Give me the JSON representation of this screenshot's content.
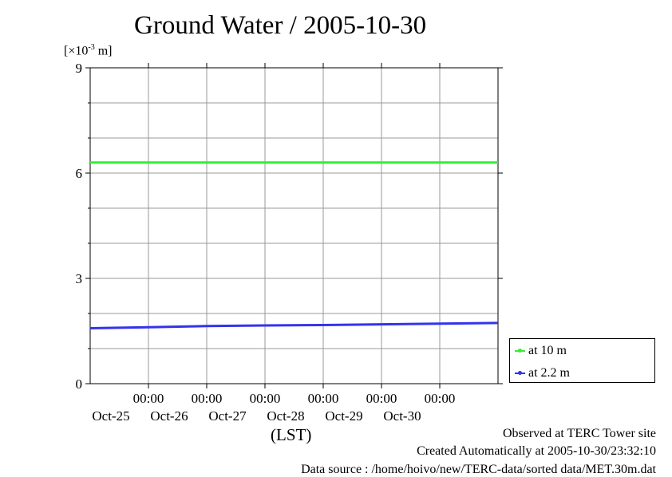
{
  "chart_data": {
    "type": "line",
    "title": "Ground Water / 2005-10-30",
    "y_unit_label": "[×10",
    "y_unit_exp": "-3",
    "y_unit_suffix": " m]",
    "xlabel": "(LST)",
    "x_ticks": [
      {
        "time": "00:00",
        "date": "Oct-25"
      },
      {
        "time": "00:00",
        "date": "Oct-26"
      },
      {
        "time": "00:00",
        "date": "Oct-27"
      },
      {
        "time": "00:00",
        "date": "Oct-28"
      },
      {
        "time": "00:00",
        "date": "Oct-29"
      },
      {
        "time": "00:00",
        "date": "Oct-30"
      }
    ],
    "xlim": [
      "2005-10-24T00:00",
      "2005-10-31T00:00"
    ],
    "ylim": [
      0,
      9
    ],
    "y_ticks": [
      0,
      3,
      6,
      9
    ],
    "y_minor_ticks": [
      1,
      2,
      4,
      5,
      7,
      8
    ],
    "grid": true,
    "legend_position": "bottom-right outside",
    "series": [
      {
        "name": "at 10 m",
        "color": "#33ee33",
        "x": [
          "2005-10-24T00:00",
          "2005-10-31T00:00"
        ],
        "y": [
          6.3,
          6.3
        ]
      },
      {
        "name": "at 2.2 m",
        "color": "#3333ee",
        "x": [
          "2005-10-24T00:00",
          "2005-10-25T00:00",
          "2005-10-26T00:00",
          "2005-10-27T00:00",
          "2005-10-28T00:00",
          "2005-10-29T00:00",
          "2005-10-30T00:00",
          "2005-10-31T00:00"
        ],
        "y": [
          1.58,
          1.61,
          1.64,
          1.66,
          1.67,
          1.69,
          1.71,
          1.73
        ]
      }
    ]
  },
  "footer": {
    "line1": "Observed at TERC Tower site",
    "line2": "Created Automatically at 2005-10-30/23:32:10",
    "line3": "Data source : /home/hoivo/new/TERC-data/sorted  data/MET.30m.dat"
  }
}
